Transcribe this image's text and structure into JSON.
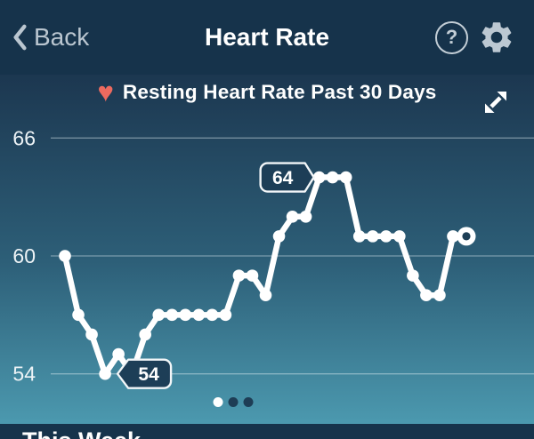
{
  "header": {
    "back_label": "Back",
    "title": "Heart Rate",
    "help_glyph": "?"
  },
  "chart_header": {
    "heart_glyph": "♥",
    "title": "Resting Heart Rate Past 30 Days"
  },
  "chart_data": {
    "type": "line",
    "title": "Resting Heart Rate Past 30 Days",
    "x_description": "last 30 days, oldest to newest",
    "y_ticks": [
      66,
      60,
      54
    ],
    "ylim": [
      52,
      67
    ],
    "grid": "horizontal",
    "values": [
      60,
      57,
      56,
      54,
      55,
      54,
      56,
      57,
      57,
      57,
      57,
      57,
      57,
      59,
      59,
      58,
      61,
      62,
      62,
      64,
      64,
      64,
      61,
      61,
      61,
      61,
      59,
      58,
      58,
      61,
      61
    ],
    "annotations": [
      {
        "label": "54",
        "point_index": 3,
        "side": "left"
      },
      {
        "label": "64",
        "point_index": 19,
        "side": "right"
      }
    ],
    "last_point_style": "ring"
  },
  "pager": {
    "count": 3,
    "active_index": 0
  },
  "bottom": {
    "title": "This Week"
  },
  "colors": {
    "header_bg": "#16334b",
    "gradient_top": "#1c3750",
    "gradient_bottom": "#4b98ae",
    "line": "#ffffff",
    "grid_line": "rgba(230,242,246,0.42)",
    "axis_label": "#edf3f6",
    "heart": "#ed6a5f",
    "callout_bg": "#1d3e57",
    "callout_border": "#f2f6f8",
    "ring_hole": "#1d3e55",
    "inactive_dot": "#1e3d55",
    "icon": "#bcc8d2"
  }
}
